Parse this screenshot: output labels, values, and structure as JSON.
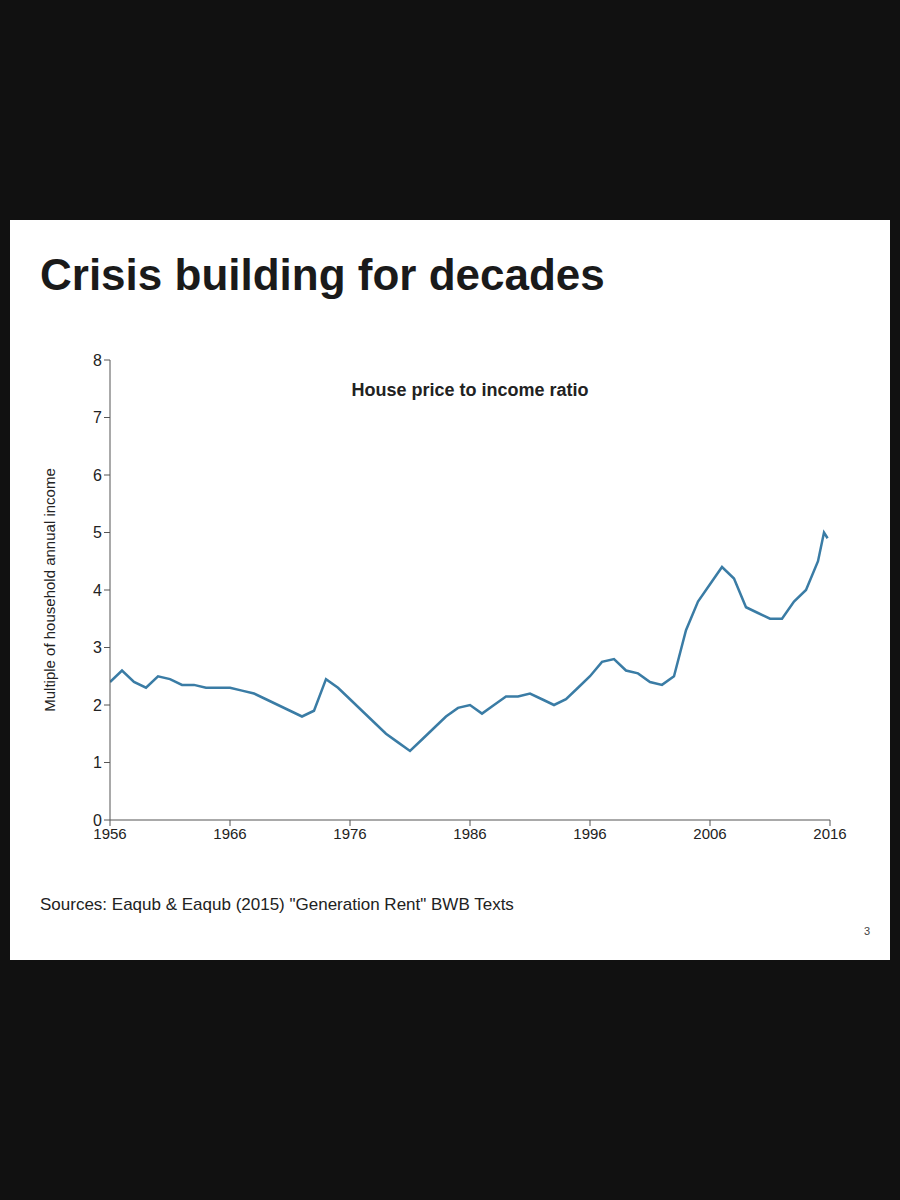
{
  "chart_data": {
    "type": "line",
    "title": "Crisis building for decades",
    "subtitle": "House price to income ratio",
    "ylabel": "Multiple of household annual income",
    "source": "Sources: Eaqub & Eaqub (2015) \"Generation Rent\" BWB Texts",
    "page_number": "3",
    "x": [
      1956,
      1957,
      1958,
      1959,
      1960,
      1961,
      1962,
      1963,
      1964,
      1965,
      1966,
      1967,
      1968,
      1969,
      1970,
      1971,
      1972,
      1973,
      1974,
      1975,
      1976,
      1977,
      1978,
      1979,
      1980,
      1981,
      1982,
      1983,
      1984,
      1985,
      1986,
      1987,
      1988,
      1989,
      1990,
      1991,
      1992,
      1993,
      1994,
      1995,
      1996,
      1997,
      1998,
      1999,
      2000,
      2001,
      2002,
      2003,
      2004,
      2005,
      2006,
      2007,
      2008,
      2009,
      2010,
      2011,
      2012,
      2013,
      2014,
      2015,
      2015.5,
      2015.8
    ],
    "values": [
      2.4,
      2.6,
      2.4,
      2.3,
      2.5,
      2.45,
      2.35,
      2.35,
      2.3,
      2.3,
      2.3,
      2.25,
      2.2,
      2.1,
      2.0,
      1.9,
      1.8,
      1.9,
      2.45,
      2.3,
      2.1,
      1.9,
      1.7,
      1.5,
      1.35,
      1.2,
      1.4,
      1.6,
      1.8,
      1.95,
      2.0,
      1.85,
      2.0,
      2.15,
      2.15,
      2.2,
      2.1,
      2.0,
      2.1,
      2.3,
      2.5,
      2.75,
      2.8,
      2.6,
      2.55,
      2.4,
      2.35,
      2.5,
      3.3,
      3.8,
      4.1,
      4.4,
      4.2,
      3.7,
      3.6,
      3.5,
      3.5,
      3.8,
      4.0,
      4.5,
      5.0,
      4.9
    ],
    "color": "#3a7ca5",
    "xlim": [
      1956,
      2016
    ],
    "xticks": [
      1956,
      1966,
      1976,
      1986,
      1996,
      2006,
      2016
    ],
    "ylim": [
      0,
      8
    ],
    "yticks": [
      0,
      1,
      2,
      3,
      4,
      5,
      6,
      7,
      8
    ],
    "grid": false
  }
}
